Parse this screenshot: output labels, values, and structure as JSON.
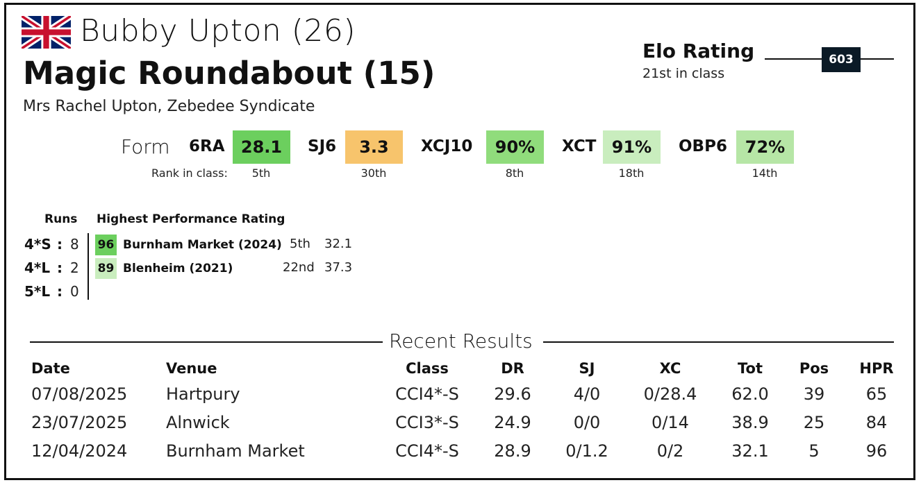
{
  "rider": "Bubby Upton (26)",
  "horse": "Magic Roundabout (15)",
  "owners": "Mrs Rachel Upton, Zebedee Syndicate",
  "flag_icon": "uk-flag-icon",
  "elo": {
    "title": "Elo Rating",
    "class_rank": "21st in class",
    "value": "603"
  },
  "form": {
    "label": "Form",
    "rank_label": "Rank in class:",
    "metrics": [
      {
        "name": "6RA",
        "value": "28.1",
        "rank": "5th",
        "color": "#6ccf5e"
      },
      {
        "name": "SJ6",
        "value": "3.3",
        "rank": "30th",
        "color": "#f7c46c"
      },
      {
        "name": "XCJ10",
        "value": "90%",
        "rank": "8th",
        "color": "#90dc7c"
      },
      {
        "name": "XCT",
        "value": "91%",
        "rank": "18th",
        "color": "#c9edbe"
      },
      {
        "name": "OBP6",
        "value": "72%",
        "rank": "14th",
        "color": "#b6e6a6"
      }
    ]
  },
  "runs": {
    "runs_header": "Runs",
    "hpr_header": "Highest Performance Rating",
    "classes": [
      {
        "cls": "4*S",
        "count": "8"
      },
      {
        "cls": "4*L",
        "count": "2"
      },
      {
        "cls": "5*L",
        "count": "0"
      }
    ],
    "hpr": [
      {
        "score": "96",
        "event": "Burnham Market  (2024)",
        "pos": "5th",
        "total": "32.1",
        "color": "#6ccf5e"
      },
      {
        "score": "89",
        "event": "Blenheim  (2021)",
        "pos": "22nd",
        "total": "37.3",
        "color": "#c9edbe"
      }
    ]
  },
  "recent": {
    "title": "Recent Results",
    "headers": [
      "Date",
      "Venue",
      "Class",
      "DR",
      "SJ",
      "XC",
      "Tot",
      "Pos",
      "HPR"
    ],
    "rows": [
      [
        "07/08/2025",
        "Hartpury",
        "CCI4*-S",
        "29.6",
        "4/0",
        "0/28.4",
        "62.0",
        "39",
        "65"
      ],
      [
        "23/07/2025",
        "Alnwick",
        "CCI3*-S",
        "24.9",
        "0/0",
        "0/14",
        "38.9",
        "25",
        "84"
      ],
      [
        "12/04/2024",
        "Burnham Market",
        "CCI4*-S",
        "28.9",
        "0/1.2",
        "0/2",
        "32.1",
        "5",
        "96"
      ]
    ]
  }
}
